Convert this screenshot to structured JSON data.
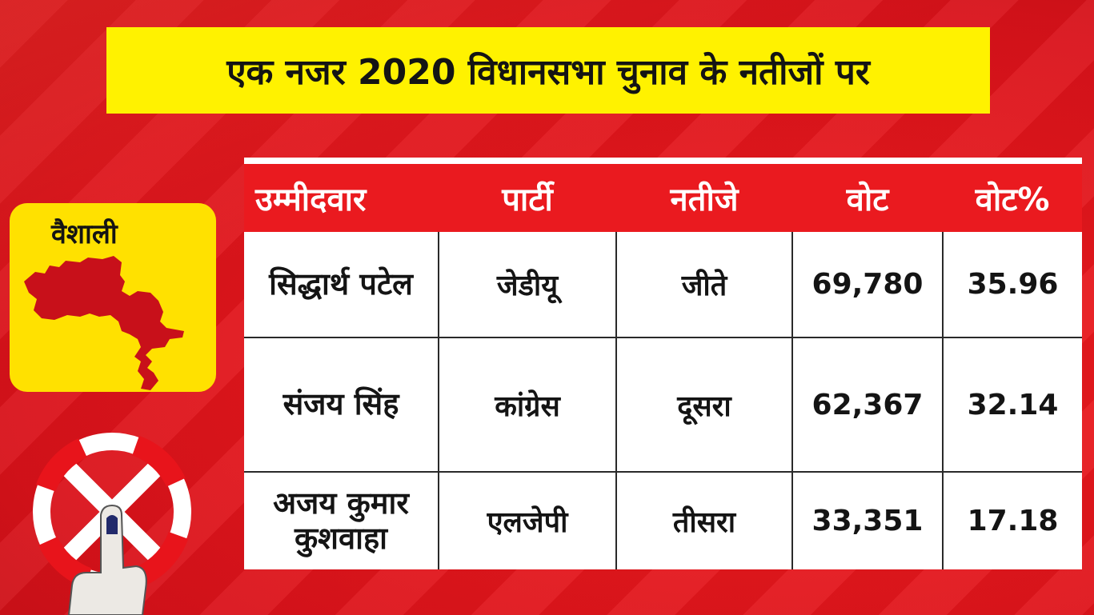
{
  "title": "एक नजर 2020 विधानसभा चुनाव के नतीजों पर",
  "district": {
    "name": "वैशाली",
    "map_icon": "district-map-icon"
  },
  "table": {
    "headers": [
      "उम्मीदवार",
      "पार्टी",
      "नतीजे",
      "वोट",
      "वोट%"
    ],
    "rows": [
      {
        "candidate": "सिद्धार्थ पटेल",
        "party": "जेडीयू",
        "result": "जीते",
        "votes": "69,780",
        "vote_pct": "35.96"
      },
      {
        "candidate": "संजय सिंह",
        "party": "कांग्रेस",
        "result": "दूसरा",
        "votes": "62,367",
        "vote_pct": "32.14"
      },
      {
        "candidate": "अजय कुमार कुशवाहा",
        "party": "एलजेपी",
        "result": "तीसरा",
        "votes": "33,351",
        "vote_pct": "17.18"
      }
    ]
  },
  "colors": {
    "background": "#e8141b",
    "title_bar": "#fff200",
    "district_card": "#ffe100",
    "header_row": "#ea1a1f",
    "map_fill": "#c8101a"
  },
  "icons": [
    "district-map-icon",
    "voting-swastika-mark-icon",
    "inked-finger-icon"
  ]
}
